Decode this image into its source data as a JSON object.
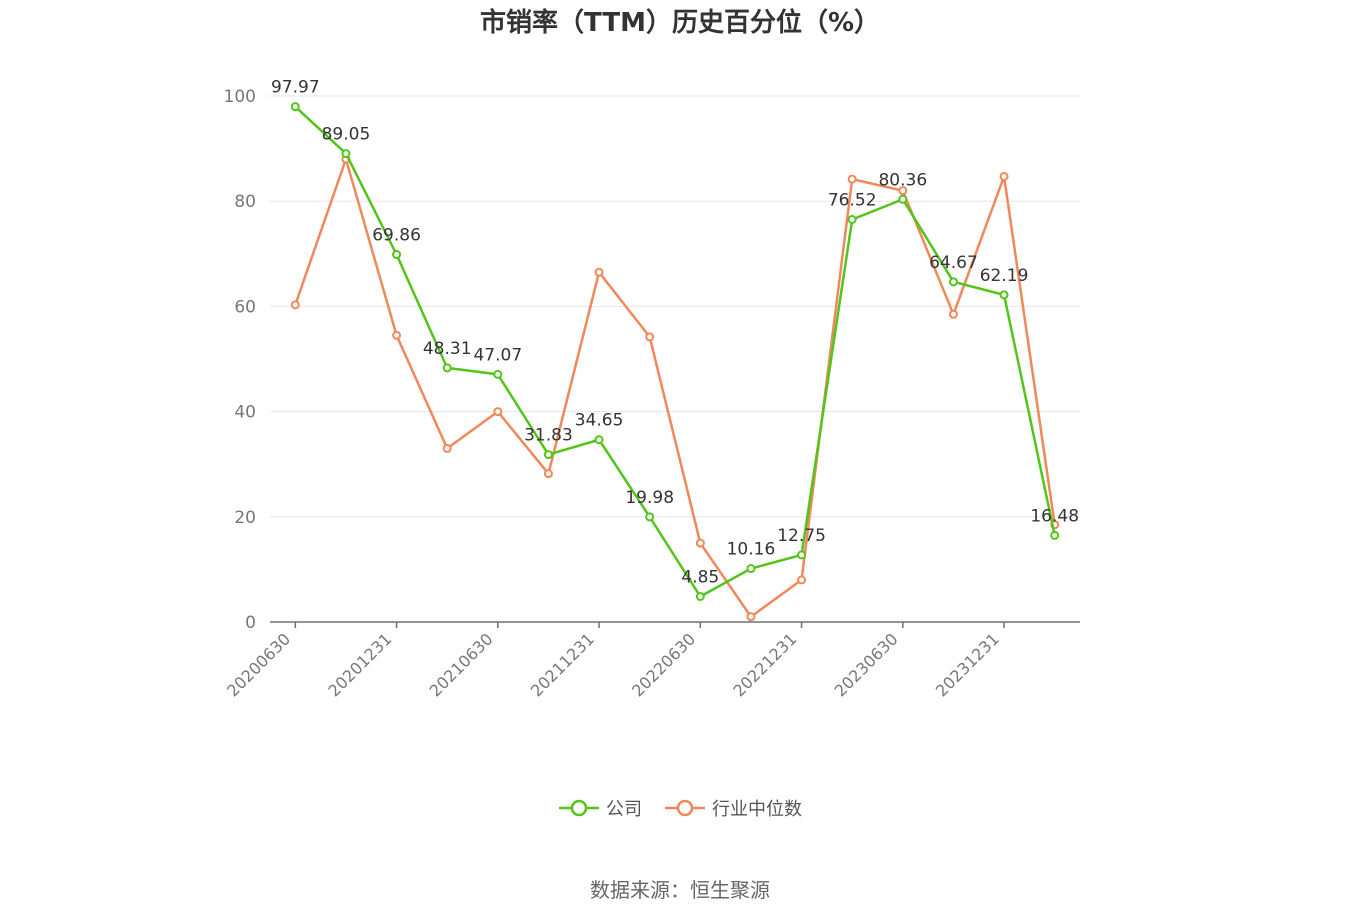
{
  "chart_data": {
    "type": "line",
    "title": "市销率（TTM）历史百分位（%）",
    "xlabel": "",
    "ylabel": "",
    "ylim": [
      0,
      100
    ],
    "yticks": [
      0,
      20,
      40,
      60,
      80,
      100
    ],
    "x_tick_labels": [
      "20200630",
      "20201231",
      "20210630",
      "20211231",
      "20220630",
      "20221231",
      "20230630",
      "20231231"
    ],
    "x": [
      "20200630",
      "20200930",
      "20201231",
      "20210331",
      "20210630",
      "20210930",
      "20211231",
      "20220331",
      "20220630",
      "20220930",
      "20221231",
      "20230331",
      "20230630",
      "20230930",
      "20231231",
      "20240331"
    ],
    "grid": true,
    "legend_position": "bottom",
    "series": [
      {
        "name": "公司",
        "color": "#52c41a",
        "show_labels": true,
        "values": [
          97.97,
          89.05,
          69.86,
          48.31,
          47.07,
          31.83,
          34.65,
          19.98,
          4.85,
          10.16,
          12.75,
          76.52,
          80.36,
          64.67,
          62.19,
          16.48
        ]
      },
      {
        "name": "行业中位数",
        "color": "#f0885a",
        "show_labels": false,
        "values": [
          60.3,
          88.0,
          54.5,
          33.0,
          40.0,
          28.2,
          66.5,
          54.2,
          15.0,
          1.0,
          8.0,
          84.2,
          82.0,
          58.5,
          84.7,
          18.5
        ]
      }
    ]
  },
  "source_text": "数据来源：恒生聚源"
}
